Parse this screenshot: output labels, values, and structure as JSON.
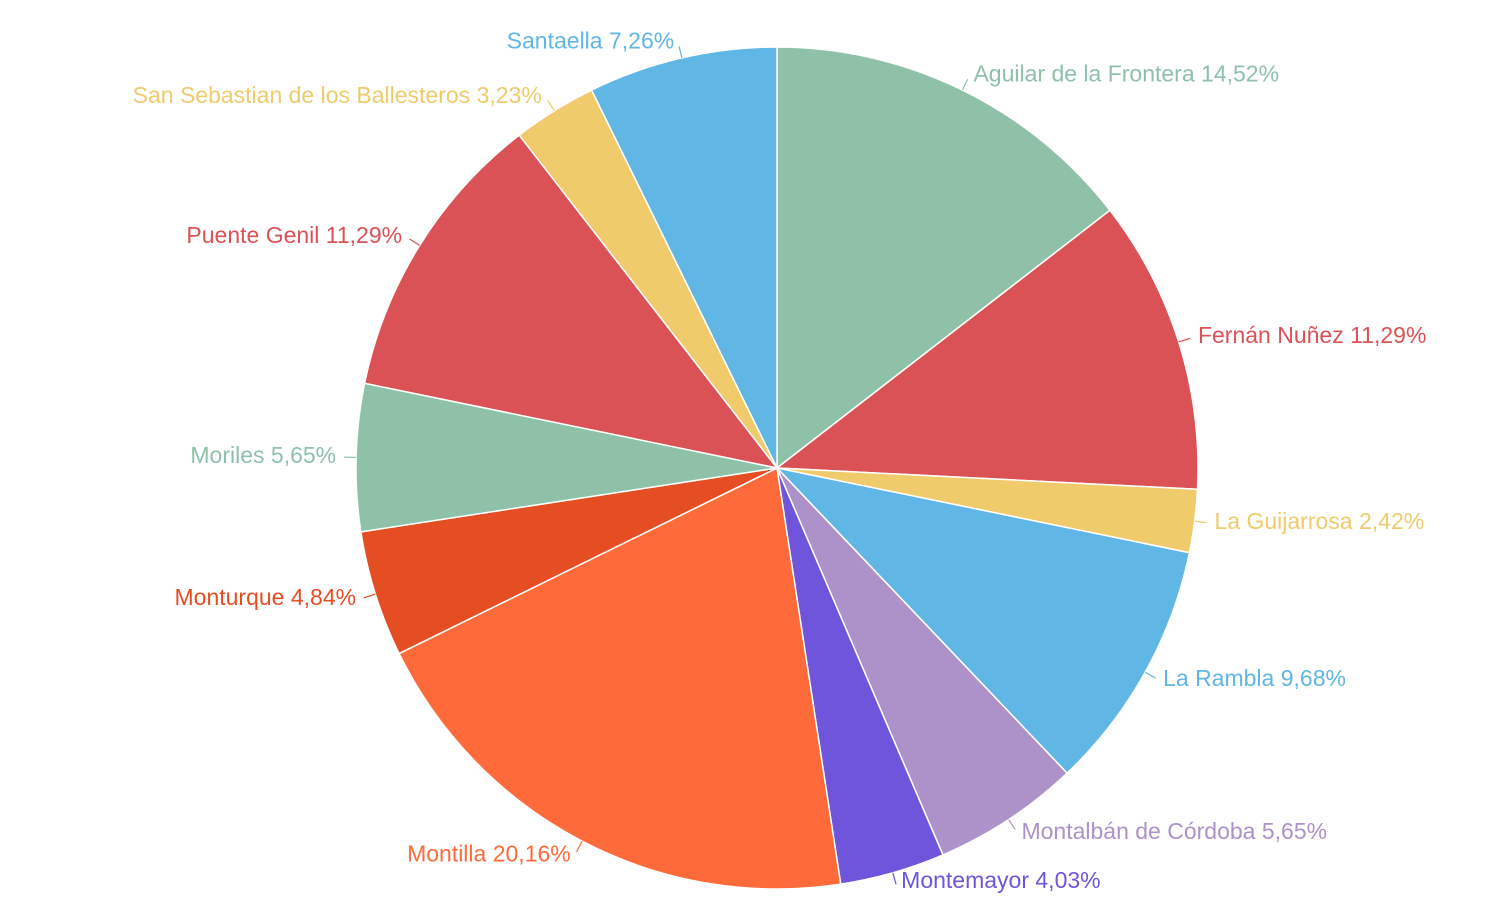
{
  "chart_data": {
    "type": "pie",
    "categories": [
      "Aguilar de la Frontera",
      "Fernán Nuñez",
      "La Guijarrosa",
      "La Rambla",
      "Montalbán de Córdoba",
      "Montemayor",
      "Montilla",
      "Monturque",
      "Moriles",
      "Puente Genil",
      "San Sebastian de los Ballesteros",
      "Santaella"
    ],
    "values": [
      14.52,
      11.29,
      2.42,
      9.68,
      5.65,
      4.03,
      20.16,
      4.84,
      5.65,
      11.29,
      3.23,
      7.26
    ],
    "value_labels": [
      "14,52%",
      "11,29%",
      "2,42%",
      "9,68%",
      "5,65%",
      "4,03%",
      "20,16%",
      "4,84%",
      "5,65%",
      "11,29%",
      "3,23%",
      "7,26%"
    ],
    "colors": [
      "#8fc1a9",
      "#db5256",
      "#efcb6b",
      "#60b6e4",
      "#ac92c8",
      "#6e55dc",
      "#fe6a39",
      "#e44e22",
      "#8fc1a9",
      "#db5256",
      "#efcb6b",
      "#60b6e4"
    ]
  }
}
